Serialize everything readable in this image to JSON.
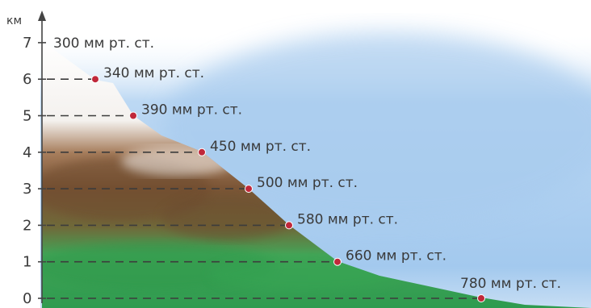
{
  "axis": {
    "unit": "км",
    "ticks": [
      "0",
      "1",
      "2",
      "3",
      "4",
      "5",
      "6",
      "7"
    ]
  },
  "points": [
    {
      "height_km": 7,
      "label": "300 мм рт. ст."
    },
    {
      "height_km": 6,
      "label": "340 мм рт. ст."
    },
    {
      "height_km": 5,
      "label": "390 мм рт. ст."
    },
    {
      "height_km": 4,
      "label": "450 мм рт. ст."
    },
    {
      "height_km": 3,
      "label": "500 мм рт. ст."
    },
    {
      "height_km": 2,
      "label": "580 мм рт. ст."
    },
    {
      "height_km": 1,
      "label": "660 мм рт. ст."
    },
    {
      "height_km": 0,
      "label": "780 мм рт. ст."
    }
  ],
  "colors": {
    "sky": "#a9cdf0",
    "snow": "#ffffff",
    "rock": "#7b5536",
    "grass": "#3aa458",
    "marker": "#c0283a",
    "axis": "#444444"
  }
}
